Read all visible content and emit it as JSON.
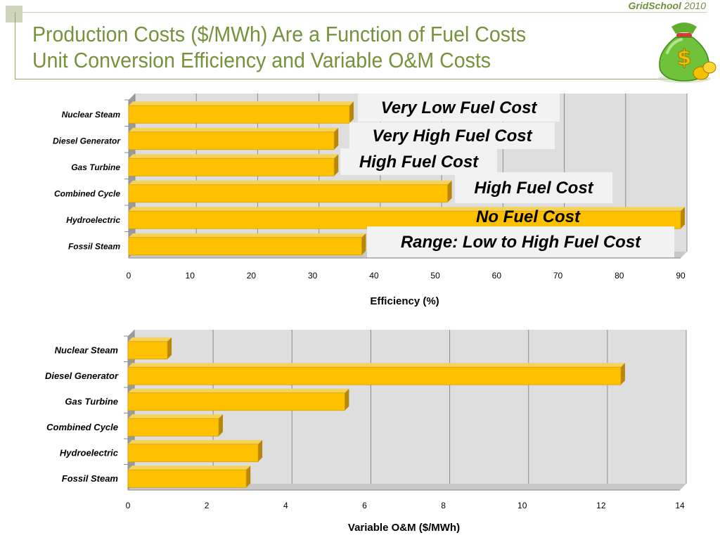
{
  "header": {
    "brand_name": "GridSchool",
    "brand_year": "2010",
    "title_line1": "Production Costs ($/MWh) Are a Function of Fuel Costs",
    "title_line2": "Unit Conversion Efficiency and Variable O&M Costs",
    "logo_icon": "money-bag-icon"
  },
  "colors": {
    "title": "#76923c",
    "bar_face": "#ffc000",
    "bar_top": "#f5d25a",
    "bar_side": "#b8860b",
    "plot_back": "#dedede",
    "plot_floor": "#c8c8c8",
    "callout_bg": "#f2f2f2"
  },
  "chart_data": [
    {
      "type": "bar",
      "orientation": "horizontal",
      "categories": [
        "Nuclear Steam",
        "Diesel Generator",
        "Gas Turbine",
        "Combined Cycle",
        "Hydroelectric",
        "Fossil Steam"
      ],
      "values": [
        36,
        33.5,
        33.5,
        52,
        90,
        38
      ],
      "xlabel": "Efficiency (%)",
      "xlim": [
        0,
        90
      ],
      "xticks": [
        0,
        10,
        20,
        30,
        40,
        50,
        60,
        70,
        80,
        90
      ],
      "grid": true,
      "annotations": [
        "Very Low Fuel Cost",
        "Very High Fuel Cost",
        "High Fuel Cost",
        "High Fuel Cost",
        "No Fuel Cost",
        "Range: Low to High Fuel Cost"
      ]
    },
    {
      "type": "bar",
      "orientation": "horizontal",
      "categories": [
        "Nuclear Steam",
        "Diesel Generator",
        "Gas Turbine",
        "Combined Cycle",
        "Hydroelectric",
        "Fossil Steam"
      ],
      "values": [
        1,
        12.5,
        5.5,
        2.3,
        3.3,
        3
      ],
      "xlabel": "Variable O&M ($/MWh)",
      "xlim": [
        0,
        14
      ],
      "xticks": [
        0,
        2,
        4,
        6,
        8,
        10,
        12,
        14
      ],
      "grid": true
    }
  ]
}
